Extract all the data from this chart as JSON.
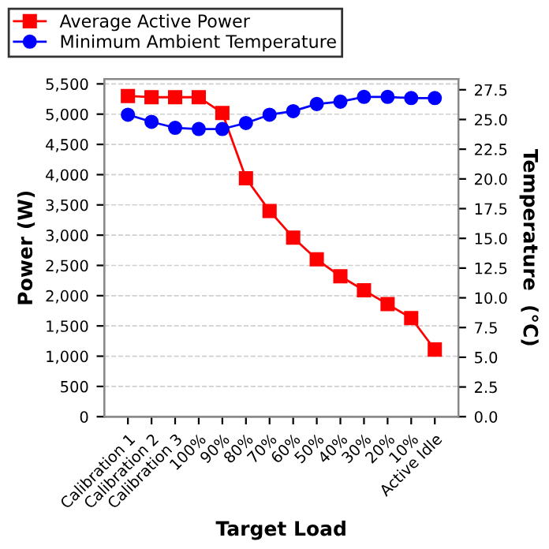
{
  "chart_data": {
    "type": "line",
    "xlabel": "Target Load",
    "ylabel": "Power (W)",
    "y2label": "Temperature  (°C)",
    "categories": [
      "Calibration 1",
      "Calibration 2",
      "Calibration 3",
      "100%",
      "90%",
      "80%",
      "70%",
      "60%",
      "50%",
      "40%",
      "30%",
      "20%",
      "10%",
      "Active Idle"
    ],
    "series": [
      {
        "name": "Average Active Power",
        "color": "#ff0000",
        "marker": "square",
        "values": [
          5300,
          5280,
          5280,
          5280,
          5020,
          3940,
          3400,
          2960,
          2600,
          2320,
          2090,
          1860,
          1630,
          1110
        ]
      },
      {
        "name": "Minimum Ambient Temperature",
        "color": "#0000ff",
        "marker": "circle",
        "axis": "y2",
        "values": [
          25.4,
          24.8,
          24.3,
          24.2,
          24.2,
          24.7,
          25.4,
          25.7,
          26.3,
          26.5,
          26.9,
          26.9,
          26.8,
          26.8
        ]
      }
    ],
    "ylim": [
      0,
      5580
    ],
    "yticks": [
      {
        "value": 0,
        "label": "0"
      },
      {
        "value": 500,
        "label": "500"
      },
      {
        "value": 1000,
        "label": "1,000"
      },
      {
        "value": 1500,
        "label": "1,500"
      },
      {
        "value": 2000,
        "label": "2,000"
      },
      {
        "value": 2500,
        "label": "2,500"
      },
      {
        "value": 3000,
        "label": "3,000"
      },
      {
        "value": 3500,
        "label": "3,500"
      },
      {
        "value": 4000,
        "label": "4,000"
      },
      {
        "value": 4500,
        "label": "4,500"
      },
      {
        "value": 5000,
        "label": "5,000"
      },
      {
        "value": 5500,
        "label": "5,500"
      }
    ],
    "y2lim": [
      0,
      28.4
    ],
    "y2ticks": [
      {
        "value": 0,
        "label": "0.0"
      },
      {
        "value": 2.5,
        "label": "2.5"
      },
      {
        "value": 5,
        "label": "5.0"
      },
      {
        "value": 7.5,
        "label": "7.5"
      },
      {
        "value": 10,
        "label": "10.0"
      },
      {
        "value": 12.5,
        "label": "12.5"
      },
      {
        "value": 15,
        "label": "15.0"
      },
      {
        "value": 17.5,
        "label": "17.5"
      },
      {
        "value": 20,
        "label": "20.0"
      },
      {
        "value": 22.5,
        "label": "22.5"
      },
      {
        "value": 25,
        "label": "25.0"
      },
      {
        "value": 27.5,
        "label": "27.5"
      }
    ],
    "grid": "y",
    "legend": "top",
    "line_style": "solid"
  }
}
